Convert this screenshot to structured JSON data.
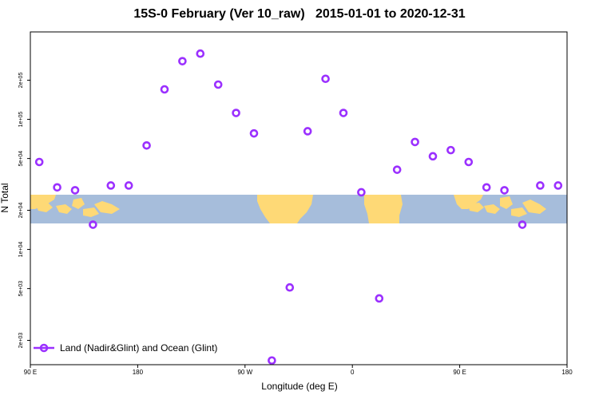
{
  "chart_data": {
    "type": "scatter",
    "title": "15S-0 February (Ver 10_raw)   2015-01-01 to 2020-12-31",
    "xlabel": "Longitude (deg E)",
    "ylabel": "N Total",
    "y_scale": "log",
    "xlim": [
      90,
      540
    ],
    "ylim": [
      1300,
      470000
    ],
    "x_ticks": [
      {
        "value": 90,
        "label": "90 E"
      },
      {
        "value": 180,
        "label": "180"
      },
      {
        "value": 270,
        "label": "90 W"
      },
      {
        "value": 360,
        "label": "0"
      },
      {
        "value": 450,
        "label": "90 E"
      },
      {
        "value": 540,
        "label": "180"
      }
    ],
    "y_ticks": [
      {
        "value": 2000,
        "label": "2e+03"
      },
      {
        "value": 5000,
        "label": "5e+03"
      },
      {
        "value": 10000,
        "label": "1e+04"
      },
      {
        "value": 20000,
        "label": "2e+04"
      },
      {
        "value": 50000,
        "label": "5e+04"
      },
      {
        "value": 100000,
        "label": "1e+05"
      },
      {
        "value": 200000,
        "label": "2e+05"
      }
    ],
    "legend": {
      "position": "bottom-left"
    },
    "grid": false,
    "background_map": {
      "description": "equatorial strip map",
      "ocean_color": "#a6bddb",
      "land_color": "#fed976"
    },
    "series": [
      {
        "name": "Land (Nadir&Glint) and Ocean (Glint)",
        "color": "#9b30ff",
        "marker": "open-circle",
        "points": [
          {
            "x": 97.5,
            "y": 47000
          },
          {
            "x": 112.5,
            "y": 30000
          },
          {
            "x": 127.5,
            "y": 28500
          },
          {
            "x": 142.5,
            "y": 15500
          },
          {
            "x": 157.5,
            "y": 31000
          },
          {
            "x": 172.5,
            "y": 31000
          },
          {
            "x": 187.5,
            "y": 63000
          },
          {
            "x": 202.5,
            "y": 170000
          },
          {
            "x": 217.5,
            "y": 280000
          },
          {
            "x": 232.5,
            "y": 320000
          },
          {
            "x": 247.5,
            "y": 185000
          },
          {
            "x": 262.5,
            "y": 112000
          },
          {
            "x": 277.5,
            "y": 78000
          },
          {
            "x": 292.5,
            "y": 1400
          },
          {
            "x": 307.5,
            "y": 5100
          },
          {
            "x": 322.5,
            "y": 81000
          },
          {
            "x": 337.5,
            "y": 205000
          },
          {
            "x": 352.5,
            "y": 112000
          },
          {
            "x": 367.5,
            "y": 27500
          },
          {
            "x": 382.5,
            "y": 4200
          },
          {
            "x": 397.5,
            "y": 41000
          },
          {
            "x": 412.5,
            "y": 67000
          },
          {
            "x": 427.5,
            "y": 52000
          },
          {
            "x": 442.5,
            "y": 58000
          },
          {
            "x": 457.5,
            "y": 47000
          },
          {
            "x": 472.5,
            "y": 30000
          },
          {
            "x": 487.5,
            "y": 28500
          },
          {
            "x": 502.5,
            "y": 15500
          },
          {
            "x": 517.5,
            "y": 31000
          },
          {
            "x": 532.5,
            "y": 31000
          }
        ]
      }
    ]
  }
}
